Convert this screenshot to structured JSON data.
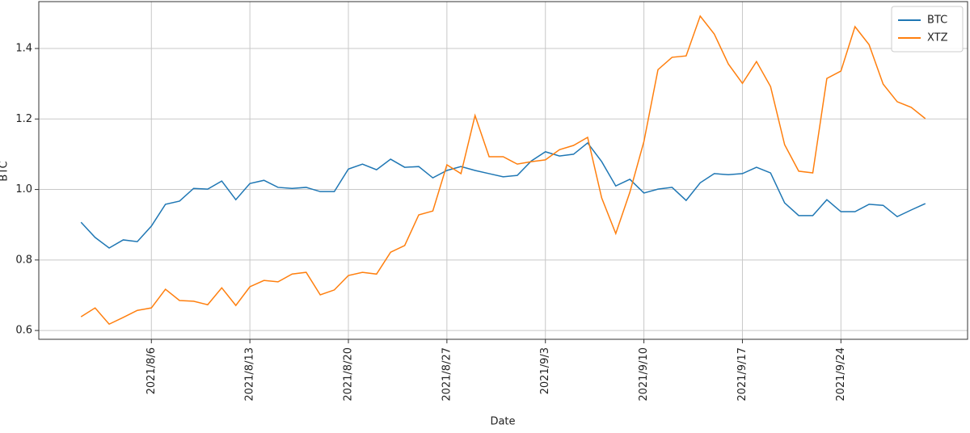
{
  "chart_data": {
    "type": "line",
    "x_label": "Date",
    "y_label": "BTC",
    "x": [
      "2021/8/1",
      "2021/8/2",
      "2021/8/3",
      "2021/8/4",
      "2021/8/5",
      "2021/8/6",
      "2021/8/7",
      "2021/8/8",
      "2021/8/9",
      "2021/8/10",
      "2021/8/11",
      "2021/8/12",
      "2021/8/13",
      "2021/8/14",
      "2021/8/15",
      "2021/8/16",
      "2021/8/17",
      "2021/8/18",
      "2021/8/19",
      "2021/8/20",
      "2021/8/21",
      "2021/8/22",
      "2021/8/23",
      "2021/8/24",
      "2021/8/25",
      "2021/8/26",
      "2021/8/27",
      "2021/8/28",
      "2021/8/29",
      "2021/8/30",
      "2021/8/31",
      "2021/9/1",
      "2021/9/2",
      "2021/9/3",
      "2021/9/4",
      "2021/9/5",
      "2021/9/6",
      "2021/9/7",
      "2021/9/8",
      "2021/9/9",
      "2021/9/10",
      "2021/9/11",
      "2021/9/12",
      "2021/9/13",
      "2021/9/14",
      "2021/9/15",
      "2021/9/16",
      "2021/9/17",
      "2021/9/18",
      "2021/9/19",
      "2021/9/20",
      "2021/9/21",
      "2021/9/22",
      "2021/9/23",
      "2021/9/24",
      "2021/9/25",
      "2021/9/26",
      "2021/9/27",
      "2021/9/28",
      "2021/9/29",
      "2021/9/30"
    ],
    "series": [
      {
        "name": "BTC",
        "color": "#1f77b4",
        "values": [
          0.907,
          0.864,
          0.834,
          0.857,
          0.852,
          0.896,
          0.958,
          0.967,
          1.003,
          1.001,
          1.024,
          0.971,
          1.017,
          1.026,
          1.006,
          1.003,
          1.006,
          0.994,
          0.994,
          1.058,
          1.072,
          1.056,
          1.086,
          1.063,
          1.065,
          1.033,
          1.054,
          1.065,
          1.054,
          1.045,
          1.036,
          1.04,
          1.081,
          1.107,
          1.095,
          1.1,
          1.132,
          1.079,
          1.01,
          1.029,
          0.99,
          1.001,
          1.006,
          0.969,
          1.019,
          1.045,
          1.042,
          1.045,
          1.063,
          1.047,
          0.962,
          0.926,
          0.926,
          0.971,
          0.937,
          0.937,
          0.958,
          0.955,
          0.923,
          0.942,
          0.96
        ]
      },
      {
        "name": "XTZ",
        "color": "#ff7f0e",
        "values": [
          0.639,
          0.664,
          0.618,
          0.637,
          0.657,
          0.664,
          0.717,
          0.685,
          0.683,
          0.673,
          0.721,
          0.671,
          0.724,
          0.742,
          0.738,
          0.76,
          0.765,
          0.701,
          0.715,
          0.756,
          0.765,
          0.76,
          0.822,
          0.841,
          0.928,
          0.939,
          1.07,
          1.045,
          1.21,
          1.093,
          1.093,
          1.072,
          1.079,
          1.084,
          1.113,
          1.125,
          1.148,
          0.976,
          0.875,
          0.992,
          1.136,
          1.34,
          1.375,
          1.379,
          1.492,
          1.441,
          1.356,
          1.301,
          1.363,
          1.292,
          1.127,
          1.052,
          1.047,
          1.315,
          1.336,
          1.462,
          1.411,
          1.299,
          1.249,
          1.233,
          1.201
        ]
      }
    ],
    "xlim": [
      "2021/7/29",
      "2021/10/3"
    ],
    "xticks": [
      "2021/8/6",
      "2021/8/13",
      "2021/8/20",
      "2021/8/27",
      "2021/9/3",
      "2021/9/10",
      "2021/9/17",
      "2021/9/24"
    ],
    "ylim": [
      0.575,
      1.533
    ],
    "yticks": [
      {
        "value": 0.6,
        "label": "0.6"
      },
      {
        "value": 0.8,
        "label": "0.8"
      },
      {
        "value": 1.0,
        "label": "1.0"
      },
      {
        "value": 1.2,
        "label": "1.2"
      },
      {
        "value": 1.4,
        "label": "1.4"
      }
    ],
    "grid": true,
    "legend": "upper right"
  }
}
